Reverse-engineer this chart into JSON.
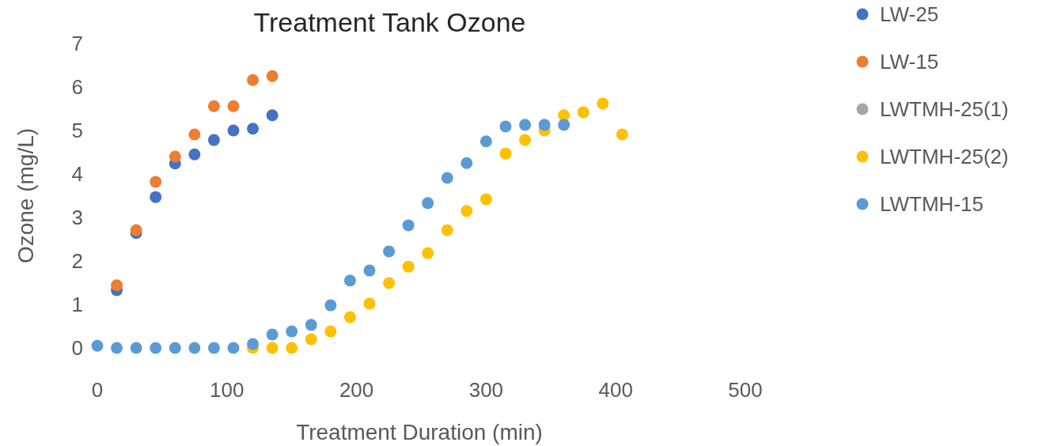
{
  "chart_data": {
    "type": "scatter",
    "title": "Treatment Tank Ozone",
    "xlabel": "Treatment Duration (min)",
    "ylabel": "Ozone (mg/L)",
    "xlim": [
      0,
      500
    ],
    "xticks": [
      0,
      100,
      200,
      300,
      400,
      500
    ],
    "ylim": [
      0,
      7
    ],
    "yticks": [
      0,
      1,
      2,
      3,
      4,
      5,
      6,
      7
    ],
    "grid": false,
    "legend": "right",
    "marker": "circle",
    "series": [
      {
        "name": "LW-25",
        "color": "#4472c4",
        "x": [
          15,
          30,
          45,
          60,
          75,
          90,
          105,
          120,
          135
        ],
        "values": [
          1.33,
          2.64,
          3.47,
          4.24,
          4.45,
          4.78,
          5.0,
          5.04,
          5.35
        ]
      },
      {
        "name": "LW-15",
        "color": "#ed7d31",
        "x": [
          15,
          30,
          45,
          60,
          75,
          90,
          105,
          120,
          135
        ],
        "values": [
          1.44,
          2.71,
          3.82,
          4.4,
          4.91,
          5.56,
          5.56,
          6.16,
          6.25
        ]
      },
      {
        "name": "LWTMH-25(1)",
        "color": "#a5a5a5"
      },
      {
        "name": "LWTMH-25(2)",
        "color": "#ffc000",
        "x": [
          120,
          135,
          150,
          165,
          180,
          195,
          210,
          225,
          240,
          255,
          270,
          285,
          300,
          315,
          330,
          345,
          360,
          375,
          390,
          405
        ],
        "values": [
          0,
          0,
          0,
          0.2,
          0.38,
          0.71,
          1.02,
          1.49,
          1.87,
          2.18,
          2.71,
          3.15,
          3.42,
          4.47,
          4.78,
          5.0,
          5.35,
          5.42,
          5.62,
          4.91
        ]
      },
      {
        "name": "LWTMH-15",
        "color": "#5b9bd5",
        "x": [
          0,
          15,
          30,
          45,
          60,
          75,
          90,
          105,
          120,
          135,
          150,
          165,
          180,
          195,
          210,
          225,
          240,
          255,
          270,
          285,
          300,
          315,
          330,
          345,
          360
        ],
        "values": [
          0.05,
          0,
          0,
          0,
          0,
          0,
          0,
          0,
          0.09,
          0.31,
          0.38,
          0.53,
          0.98,
          1.55,
          1.78,
          2.22,
          2.82,
          3.33,
          3.91,
          4.25,
          4.75,
          5.09,
          5.13,
          5.13,
          5.13
        ]
      }
    ]
  }
}
